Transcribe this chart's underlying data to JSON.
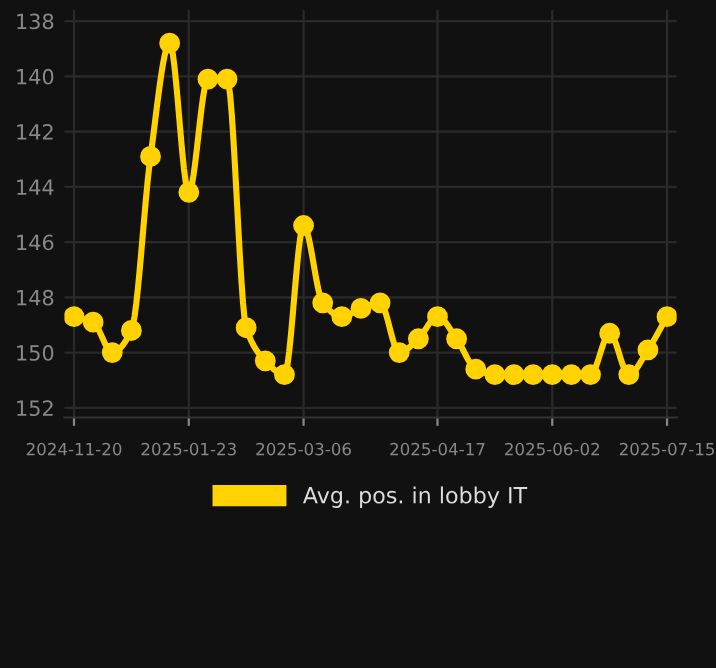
{
  "chart_data": {
    "type": "line",
    "categories": [
      "2024-11-20",
      null,
      null,
      null,
      null,
      null,
      "2025-01-23",
      null,
      null,
      null,
      null,
      null,
      "2025-03-06",
      null,
      null,
      null,
      null,
      null,
      null,
      "2025-04-17",
      null,
      null,
      null,
      null,
      null,
      "2025-06-02",
      null,
      null,
      null,
      null,
      null,
      "2025-07-15"
    ],
    "series": [
      {
        "name": "Avg. pos. in lobby IT",
        "color": "#ffd200",
        "values": [
          148.7,
          148.9,
          150.0,
          149.2,
          142.9,
          138.8,
          144.2,
          140.1,
          140.1,
          149.1,
          150.3,
          150.8,
          145.4,
          148.2,
          148.7,
          148.4,
          148.2,
          150.0,
          149.5,
          148.7,
          149.5,
          150.6,
          150.8,
          150.8,
          150.8,
          150.8,
          150.8,
          150.8,
          149.3,
          150.8,
          149.9,
          148.7
        ]
      }
    ],
    "ylim": [
      152.35,
      137.6
    ],
    "yticks": [
      138,
      140,
      142,
      144,
      146,
      148,
      150,
      152
    ],
    "grid": true,
    "legend": "bottom",
    "marker": "circle",
    "line_style": "solid"
  }
}
